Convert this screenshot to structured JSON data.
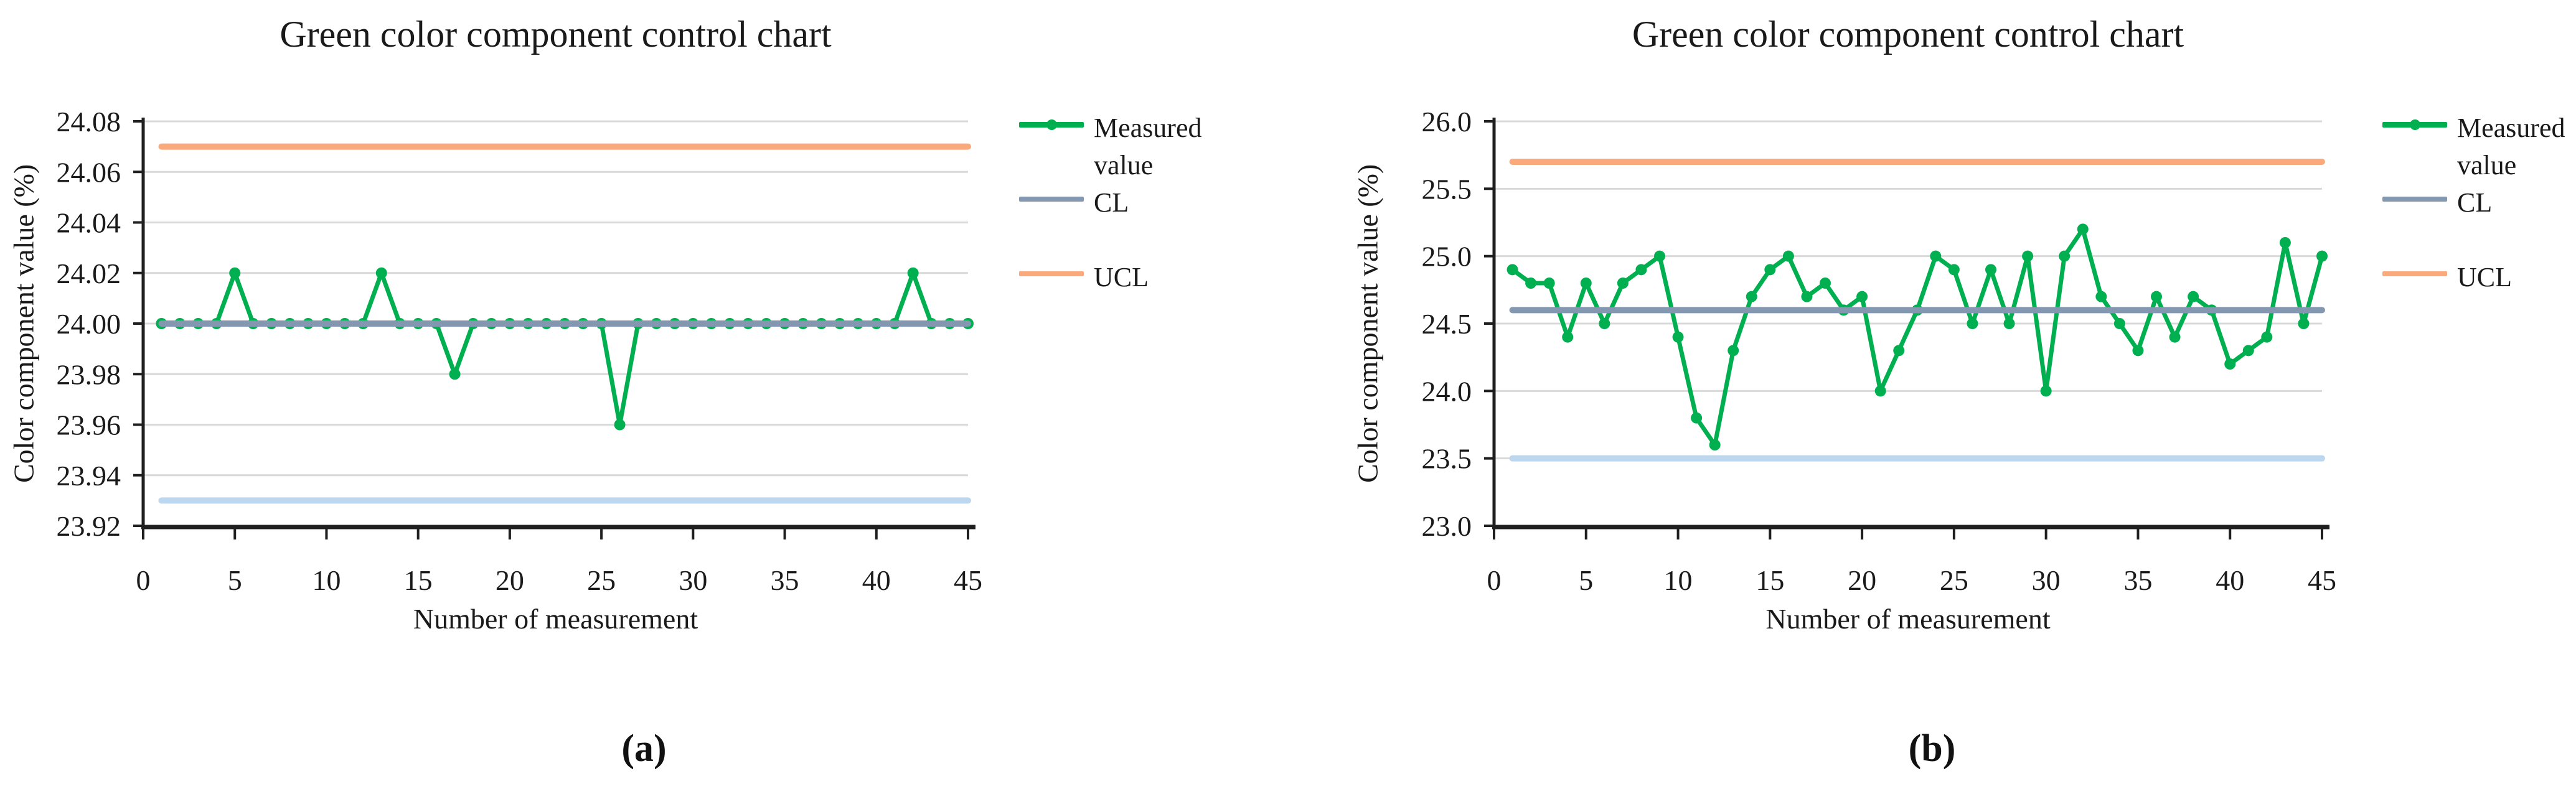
{
  "chart_data": [
    {
      "id": "a",
      "type": "line",
      "title": "Green color component control chart",
      "xlabel": "Number of measurement",
      "ylabel": "Color component value (%)",
      "caption": "(a)",
      "xlim": [
        0,
        45
      ],
      "xticks": [
        0,
        5,
        10,
        15,
        20,
        25,
        30,
        35,
        40,
        45
      ],
      "ylim": [
        23.92,
        24.08
      ],
      "yticks": [
        23.92,
        23.94,
        23.96,
        23.98,
        24.0,
        24.02,
        24.04,
        24.06,
        24.08
      ],
      "ytick_labels": [
        "23.92",
        "23.94",
        "23.96",
        "23.98",
        "24.00",
        "24.02",
        "24.04",
        "24.06",
        "24.08"
      ],
      "grid": true,
      "legend_position": "right",
      "legend_entries": [
        "Measured value",
        "CL",
        "UCL"
      ],
      "series": [
        {
          "name": "Measured value",
          "type": "line-markers",
          "color": "#00B050",
          "values": [
            24.0,
            24.0,
            24.0,
            24.0,
            24.02,
            24.0,
            24.0,
            24.0,
            24.0,
            24.0,
            24.0,
            24.0,
            24.02,
            24.0,
            24.0,
            24.0,
            23.98,
            24.0,
            24.0,
            24.0,
            24.0,
            24.0,
            24.0,
            24.0,
            24.0,
            23.96,
            24.0,
            24.0,
            24.0,
            24.0,
            24.0,
            24.0,
            24.0,
            24.0,
            24.0,
            24.0,
            24.0,
            24.0,
            24.0,
            24.0,
            24.0,
            24.02,
            24.0,
            24.0,
            24.0
          ]
        },
        {
          "name": "CL",
          "type": "hline",
          "color": "#8497B0",
          "value": 24.0,
          "in_legend": true
        },
        {
          "name": "UCL",
          "type": "hline",
          "color": "#F9A97C",
          "value": 24.07,
          "in_legend": true
        },
        {
          "name": "LCL",
          "type": "hline",
          "color": "#BDD7EE",
          "value": 23.93,
          "in_legend": false
        }
      ]
    },
    {
      "id": "b",
      "type": "line",
      "title": "Green color component control chart",
      "xlabel": "Number of measurement",
      "ylabel": "Color component value (%)",
      "caption": "(b)",
      "xlim": [
        0,
        45
      ],
      "xticks": [
        0,
        5,
        10,
        15,
        20,
        25,
        30,
        35,
        40,
        45
      ],
      "ylim": [
        23.0,
        26.0
      ],
      "yticks": [
        23.0,
        23.5,
        24.0,
        24.5,
        25.0,
        25.5,
        26.0
      ],
      "ytick_labels": [
        "23.0",
        "23.5",
        "24.0",
        "24.5",
        "25.0",
        "25.5",
        "26.0"
      ],
      "grid": true,
      "legend_position": "right",
      "legend_entries": [
        "Measured value",
        "CL",
        "UCL"
      ],
      "series": [
        {
          "name": "Measured value",
          "type": "line-markers",
          "color": "#00B050",
          "values": [
            24.9,
            24.8,
            24.8,
            24.4,
            24.8,
            24.5,
            24.8,
            24.9,
            25.0,
            24.4,
            23.8,
            23.6,
            24.3,
            24.7,
            24.9,
            25.0,
            24.7,
            24.8,
            24.6,
            24.7,
            24.0,
            24.3,
            24.6,
            25.0,
            24.9,
            24.5,
            24.9,
            24.5,
            25.0,
            24.0,
            25.0,
            25.2,
            24.7,
            24.5,
            24.3,
            24.7,
            24.4,
            24.7,
            24.6,
            24.2,
            24.3,
            24.4,
            25.1,
            24.5,
            25.0
          ]
        },
        {
          "name": "CL",
          "type": "hline",
          "color": "#8497B0",
          "value": 24.6,
          "in_legend": true
        },
        {
          "name": "UCL",
          "type": "hline",
          "color": "#F9A97C",
          "value": 25.7,
          "in_legend": true
        },
        {
          "name": "LCL",
          "type": "hline",
          "color": "#BDD7EE",
          "value": 23.5,
          "in_legend": false
        }
      ]
    }
  ],
  "style": {
    "grid_color": "#D9D9D9",
    "axis_color": "#1f1f1f",
    "text_color": "#1a1a1a",
    "marker_color": "#00B050"
  }
}
